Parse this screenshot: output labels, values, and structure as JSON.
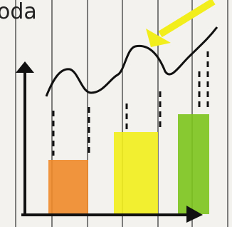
{
  "caption": {
    "text": "oda"
  }
}
